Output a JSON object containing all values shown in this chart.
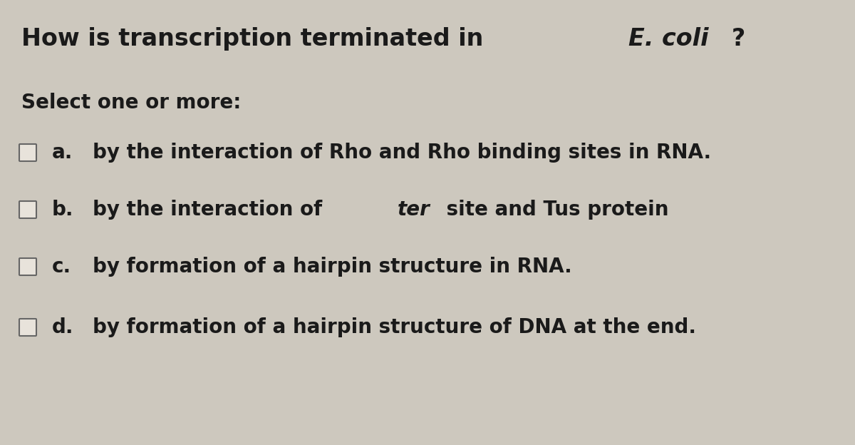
{
  "background_color": "#cdc8be",
  "title_parts": [
    {
      "text": "How is transcription terminated in ",
      "italic": false,
      "weight": "bold"
    },
    {
      "text": "E. coli",
      "italic": true,
      "weight": "bold"
    },
    {
      "text": "?",
      "italic": false,
      "weight": "bold"
    }
  ],
  "subtitle": "Select one or more:",
  "options": [
    {
      "label": "a.",
      "text_parts": [
        {
          "text": "by the interaction of Rho and Rho binding sites in RNA.",
          "italic": false
        }
      ]
    },
    {
      "label": "b.",
      "text_parts": [
        {
          "text": "by the interaction of ",
          "italic": false
        },
        {
          "text": "ter",
          "italic": true
        },
        {
          "text": " site and Tus protein",
          "italic": false
        }
      ]
    },
    {
      "label": "c.",
      "text_parts": [
        {
          "text": "by formation of a hairpin structure in RNA.",
          "italic": false
        }
      ]
    },
    {
      "label": "d.",
      "text_parts": [
        {
          "text": "by formation of a hairpin structure of DNA at the end.",
          "italic": false
        }
      ]
    }
  ],
  "text_color": "#1a1a1a",
  "checkbox_color": "#e8e3db",
  "checkbox_edge_color": "#666666",
  "title_fontsize": 24,
  "subtitle_fontsize": 20,
  "option_fontsize": 20
}
